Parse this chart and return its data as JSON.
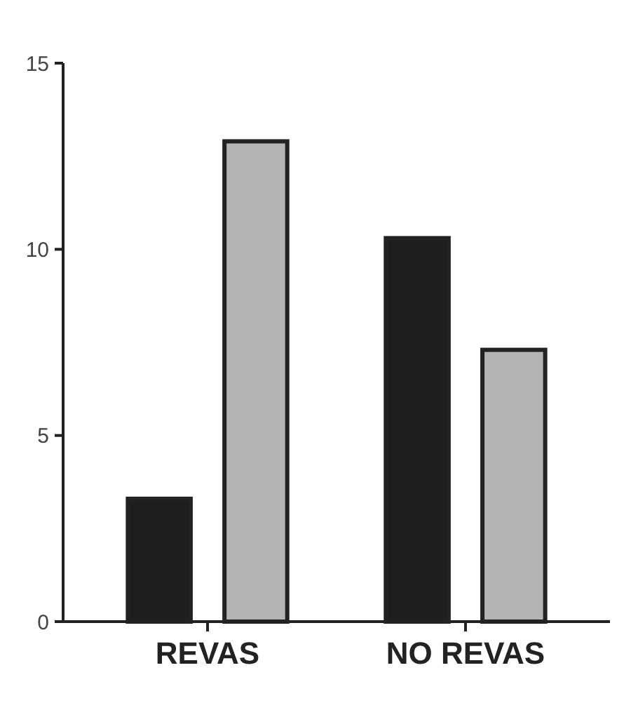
{
  "chart_data": {
    "type": "bar",
    "categories": [
      "REVAS",
      "NO REVAS"
    ],
    "series": [
      {
        "color": "#1e1e1e",
        "values": [
          3.3,
          10.3
        ]
      },
      {
        "color": "#b4b4b4",
        "values": [
          12.9,
          7.3
        ]
      }
    ],
    "ylim": [
      0,
      15
    ],
    "yticks": [
      0,
      5,
      10,
      15
    ],
    "grid": false
  }
}
